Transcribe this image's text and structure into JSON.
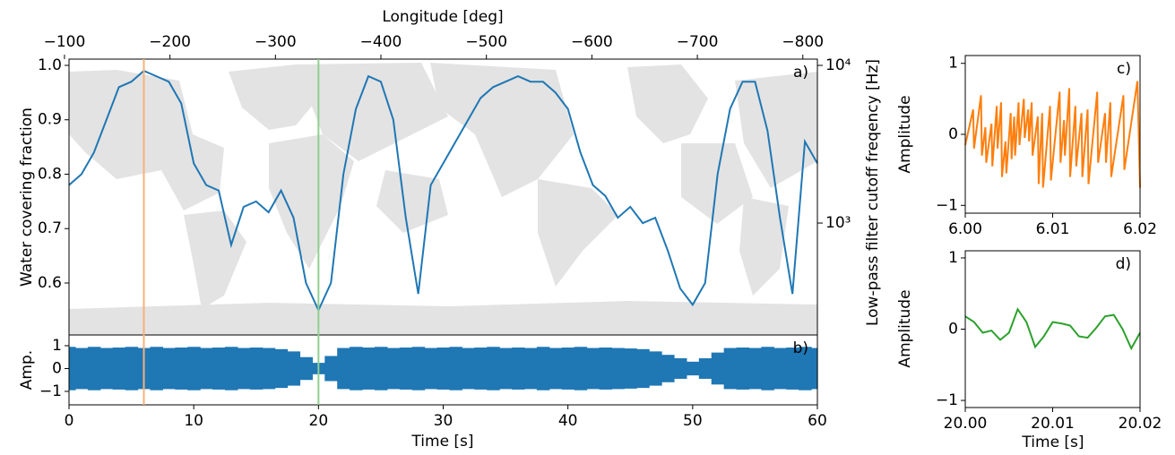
{
  "chart_data": [
    {
      "type": "line",
      "panel_label": "a)",
      "top_xlabel": "Longitude [deg]",
      "ylabel": "Water covering fraction",
      "y2label": "Low-pass filter cutoff freqency [Hz]",
      "x": [
        0,
        1,
        2,
        3,
        4,
        5,
        6,
        7,
        8,
        9,
        10,
        11,
        12,
        13,
        14,
        15,
        16,
        17,
        18,
        19,
        20,
        21,
        22,
        23,
        24,
        25,
        26,
        27,
        28,
        29,
        30,
        31,
        32,
        33,
        34,
        35,
        36,
        37,
        38,
        39,
        40,
        41,
        42,
        43,
        44,
        45,
        46,
        47,
        48,
        49,
        50,
        51,
        52,
        53,
        54,
        55,
        56,
        57,
        58,
        59,
        60
      ],
      "series": [
        {
          "color": "#1f77b4",
          "values": [
            0.78,
            0.8,
            0.84,
            0.9,
            0.96,
            0.97,
            0.99,
            0.98,
            0.97,
            0.93,
            0.82,
            0.78,
            0.77,
            0.67,
            0.74,
            0.75,
            0.73,
            0.77,
            0.72,
            0.6,
            0.55,
            0.6,
            0.8,
            0.92,
            0.98,
            0.97,
            0.9,
            0.72,
            0.58,
            0.78,
            0.82,
            0.86,
            0.9,
            0.94,
            0.96,
            0.97,
            0.98,
            0.97,
            0.97,
            0.95,
            0.92,
            0.84,
            0.78,
            0.76,
            0.72,
            0.74,
            0.71,
            0.72,
            0.66,
            0.59,
            0.56,
            0.6,
            0.8,
            0.92,
            0.97,
            0.97,
            0.88,
            0.72,
            0.58,
            0.86,
            0.82
          ]
        }
      ],
      "xlim": [
        0,
        60
      ],
      "ylim": [
        0.5045,
        1.0115
      ],
      "yticks": [
        0.6,
        0.7,
        0.8,
        0.9,
        {
          "value": 1,
          "label": "1.0"
        }
      ],
      "top_xlim": [
        -104.3,
        -813.8
      ],
      "top_xticks": [
        {
          "value": -100,
          "label": "−100"
        },
        {
          "value": -200,
          "label": "−200"
        },
        {
          "value": -300,
          "label": "−300"
        },
        {
          "value": -400,
          "label": "−400"
        },
        {
          "value": -500,
          "label": "−500"
        },
        {
          "value": -600,
          "label": "−600"
        },
        {
          "value": -700,
          "label": "−700"
        },
        {
          "value": -800,
          "label": "−800"
        }
      ],
      "y2lim": [
        195,
        10960
      ],
      "y2log": true,
      "y2ticks": [
        {
          "value": 1000,
          "label": "10³"
        },
        {
          "value": 10000,
          "label": "10⁴"
        }
      ],
      "vlines": [
        {
          "x": 6,
          "color": "#f7b27a"
        },
        {
          "x": 20,
          "color": "#8fd08f"
        }
      ]
    },
    {
      "type": "envelope",
      "panel_label": "b)",
      "ylabel": "Amp.",
      "xlabel": "Time [s]",
      "color": "#1f77b4",
      "x": [
        0,
        1,
        2,
        3,
        4,
        5,
        6,
        7,
        8,
        9,
        10,
        11,
        12,
        13,
        14,
        15,
        16,
        17,
        18,
        19,
        20,
        21,
        22,
        23,
        24,
        25,
        26,
        27,
        28,
        29,
        30,
        31,
        32,
        33,
        34,
        35,
        36,
        37,
        38,
        39,
        40,
        41,
        42,
        43,
        44,
        45,
        46,
        47,
        48,
        49,
        50,
        51,
        52,
        53,
        54,
        55,
        56,
        57,
        58,
        59,
        60
      ],
      "values": [
        0.95,
        0.9,
        0.95,
        0.9,
        0.92,
        0.95,
        0.9,
        0.95,
        0.9,
        0.92,
        0.95,
        0.9,
        0.92,
        0.95,
        0.9,
        0.92,
        0.9,
        0.85,
        0.75,
        0.5,
        0.25,
        0.55,
        0.9,
        0.95,
        0.92,
        0.95,
        0.9,
        0.92,
        0.95,
        0.9,
        0.92,
        0.95,
        0.9,
        0.92,
        0.95,
        0.9,
        0.92,
        0.9,
        0.95,
        0.9,
        0.92,
        0.95,
        0.9,
        0.92,
        0.9,
        0.88,
        0.85,
        0.75,
        0.6,
        0.45,
        0.3,
        0.45,
        0.7,
        0.9,
        0.92,
        0.9,
        0.95,
        0.9,
        0.92,
        0.95,
        0.9
      ],
      "xlim": [
        0,
        60
      ],
      "xticks": [
        0,
        10,
        20,
        30,
        40,
        50,
        60
      ],
      "ylim": [
        -1.59,
        1.47
      ],
      "yticks": [
        {
          "value": -1,
          "label": "−1"
        },
        0,
        1
      ]
    },
    {
      "type": "line",
      "panel_label": "c)",
      "ylabel": "Amplitude",
      "x": [
        6.0,
        6.0009,
        6.001,
        6.0018,
        6.0019,
        6.0023,
        6.0024,
        6.003,
        6.0031,
        6.0036,
        6.0037,
        6.0041,
        6.0042,
        6.0046,
        6.0047,
        6.0052,
        6.0053,
        6.0056,
        6.0057,
        6.0061,
        6.0062,
        6.0067,
        6.0068,
        6.0072,
        6.0073,
        6.0076,
        6.0077,
        6.0083,
        6.0084,
        6.0088,
        6.0089,
        6.0097,
        6.0098,
        6.0108,
        6.0109,
        6.0113,
        6.0114,
        6.0119,
        6.012,
        6.0126,
        6.0127,
        6.0133,
        6.0134,
        6.014,
        6.0141,
        6.0151,
        6.0152,
        6.016,
        6.0161,
        6.0166,
        6.0167,
        6.0181,
        6.0182,
        6.0197,
        6.02
      ],
      "series": [
        {
          "color": "#ff7f0e",
          "values": [
            -0.15,
            0.35,
            -0.2,
            0.55,
            -0.3,
            0.1,
            -0.4,
            0.15,
            -0.45,
            0.4,
            -0.2,
            0.45,
            -0.6,
            -0.1,
            -0.55,
            0.3,
            -0.35,
            0.25,
            -0.3,
            0.45,
            -0.15,
            0.5,
            -0.05,
            0.35,
            -0.1,
            0.45,
            -0.3,
            0.25,
            -0.7,
            0.3,
            -0.75,
            0.4,
            -0.65,
            0.6,
            -0.4,
            0.2,
            -0.3,
            0.65,
            -0.6,
            0.4,
            -0.45,
            0.3,
            -0.6,
            0.35,
            -0.7,
            0.6,
            -0.4,
            0.3,
            -0.4,
            0.45,
            -0.6,
            0.55,
            -0.5,
            0.75,
            -0.75
          ]
        }
      ],
      "xlim": [
        6.0,
        6.02
      ],
      "xticks": [
        {
          "value": 6,
          "label": "6.00"
        },
        6.01,
        6.02
      ],
      "ylim": [
        -1.11,
        1.11
      ],
      "yticks": [
        {
          "value": -1,
          "label": "−1"
        },
        0,
        1
      ]
    },
    {
      "type": "line",
      "panel_label": "d)",
      "ylabel": "Amplitude",
      "xlabel": "Time [s]",
      "x": [
        20.0,
        20.001,
        20.002,
        20.003,
        20.004,
        20.005,
        20.006,
        20.007,
        20.008,
        20.009,
        20.01,
        20.011,
        20.012,
        20.013,
        20.014,
        20.015,
        20.016,
        20.017,
        20.018,
        20.019,
        20.02
      ],
      "series": [
        {
          "color": "#2ca02c",
          "values": [
            0.18,
            0.1,
            -0.05,
            -0.02,
            -0.15,
            -0.05,
            0.28,
            0.1,
            -0.25,
            -0.1,
            0.1,
            0.08,
            0.05,
            -0.1,
            -0.12,
            0.02,
            0.18,
            0.2,
            0.0,
            -0.27,
            -0.05
          ]
        }
      ],
      "xlim": [
        20.0,
        20.02
      ],
      "xticks": [
        {
          "value": 20,
          "label": "20.00"
        },
        20.01,
        20.02
      ],
      "ylim": [
        -1.1,
        1.1
      ],
      "yticks": [
        {
          "value": -1,
          "label": "−1"
        },
        0,
        1
      ]
    }
  ]
}
